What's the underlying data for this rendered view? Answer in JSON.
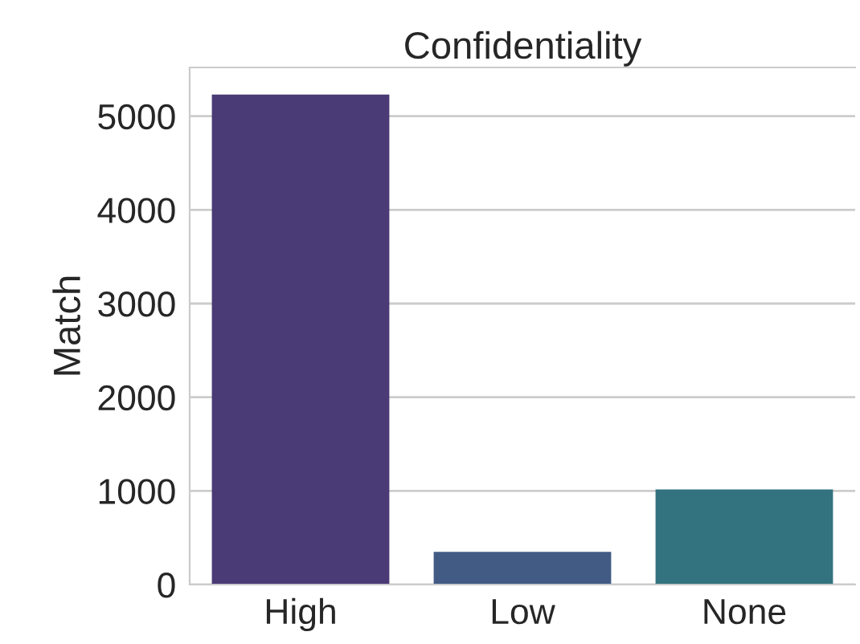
{
  "chart_data": {
    "type": "bar",
    "title": "Confidentiality",
    "ylabel": "Match",
    "categories": [
      "High",
      "Low",
      "None"
    ],
    "values": [
      5230,
      350,
      1015
    ],
    "colors": [
      "#4a3a75",
      "#425b84",
      "#33737f"
    ],
    "ylim": [
      0,
      5520
    ],
    "yticks": [
      0,
      1000,
      2000,
      3000,
      4000,
      5000
    ],
    "grid": "y"
  }
}
